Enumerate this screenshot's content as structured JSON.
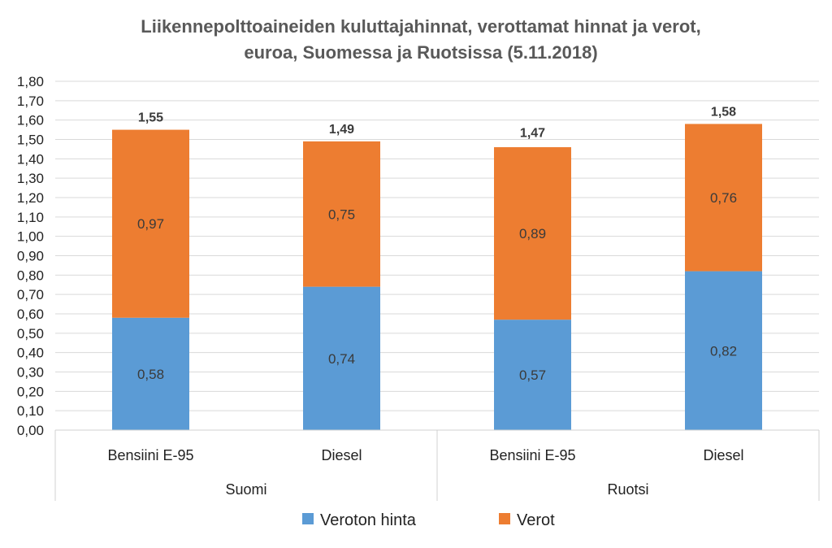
{
  "chart_data": {
    "type": "bar",
    "stacked": true,
    "title_lines": [
      "Liikennepolttoaineiden kuluttajahinnat, verottamat hinnat ja verot,",
      "euroa, Suomessa ja Ruotsissa (5.11.2018)"
    ],
    "ylim": [
      0,
      1.8
    ],
    "ytick_step": 0.1,
    "ytick_labels": [
      "0,00",
      "0,10",
      "0,20",
      "0,30",
      "0,40",
      "0,50",
      "0,60",
      "0,70",
      "0,80",
      "0,90",
      "1,00",
      "1,10",
      "1,20",
      "1,30",
      "1,40",
      "1,50",
      "1,60",
      "1,70",
      "1,80"
    ],
    "categories": [
      "Bensiini E-95",
      "Diesel",
      "Bensiini E-95",
      "Diesel"
    ],
    "groups": [
      {
        "label": "Suomi",
        "count": 2
      },
      {
        "label": "Ruotsi",
        "count": 2
      }
    ],
    "series": [
      {
        "name": "Veroton hinta",
        "color": "#5b9bd5",
        "values": [
          0.58,
          0.74,
          0.57,
          0.82
        ],
        "labels": [
          "0,58",
          "0,74",
          "0,57",
          "0,82"
        ]
      },
      {
        "name": "Verot",
        "color": "#ed7d31",
        "values": [
          0.97,
          0.75,
          0.89,
          0.76
        ],
        "labels": [
          "0,97",
          "0,75",
          "0,89",
          "0,76"
        ]
      }
    ],
    "totals": [
      1.55,
      1.49,
      1.47,
      1.58
    ],
    "total_labels": [
      "1,55",
      "1,49",
      "1,47",
      "1,58"
    ],
    "grid": true,
    "legend": "bottom"
  }
}
